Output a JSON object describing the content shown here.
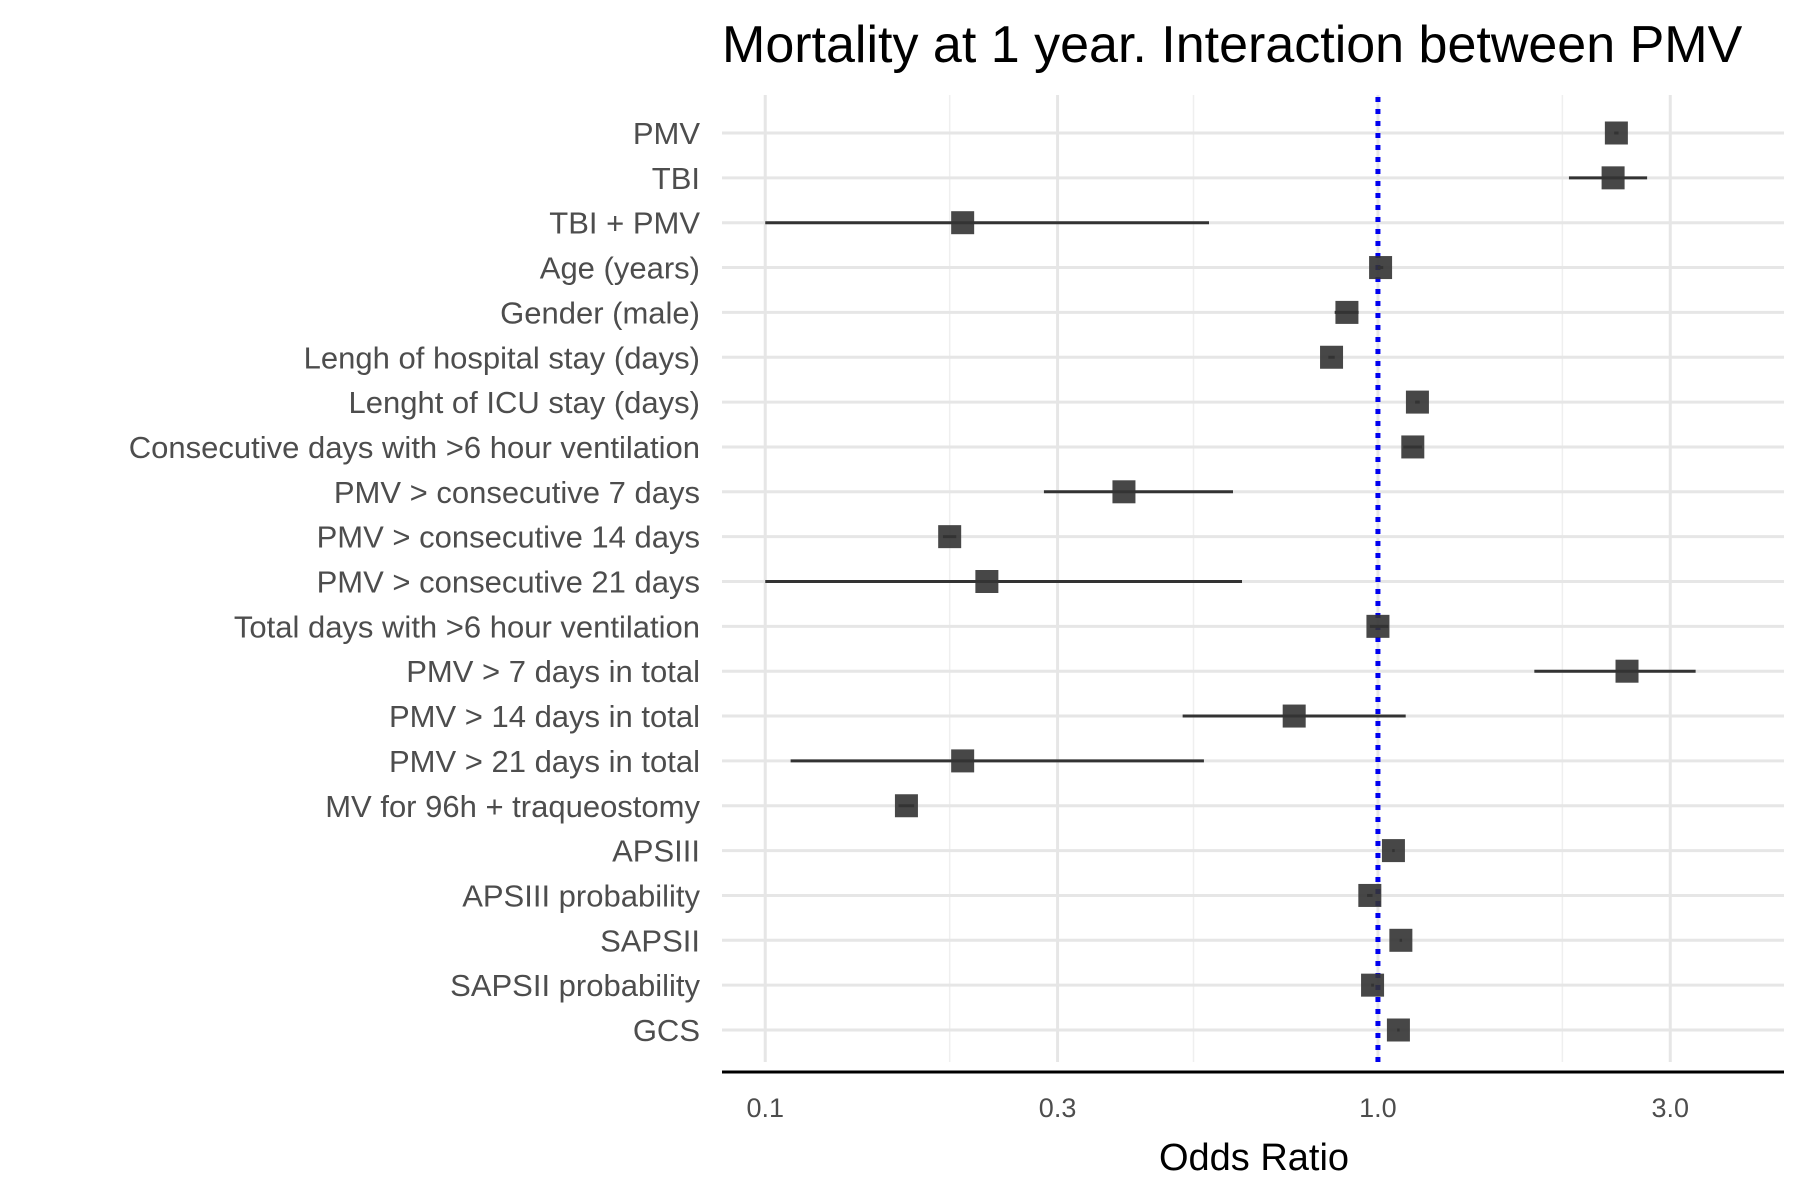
{
  "chart_data": {
    "type": "forest",
    "title": "Mortality at 1 year. Interaction between PMV",
    "xlabel": "Odds Ratio",
    "ylabel": "",
    "xscale": "log10",
    "xlim": [
      0.085,
      4.6
    ],
    "x_ticks": [
      0.1,
      0.3,
      1.0,
      3.0
    ],
    "x_tick_labels": [
      "0.1",
      "0.3",
      "1.0",
      "3.0"
    ],
    "x_minor_ticks": [
      0.2,
      0.5,
      2.0
    ],
    "reference_line": 1.0,
    "reference_line_color": "#0000ee",
    "marker_color": "#333333",
    "grid": true,
    "legend": "none",
    "series": [
      {
        "rows": [
          {
            "label": "PMV",
            "or": 2.45,
            "ci_low": 2.43,
            "ci_high": 2.47
          },
          {
            "label": "TBI",
            "or": 2.42,
            "ci_low": 2.05,
            "ci_high": 2.75
          },
          {
            "label": "TBI + PMV",
            "or": 0.21,
            "ci_low": 0.1,
            "ci_high": 0.53
          },
          {
            "label": "Age (years)",
            "or": 1.01,
            "ci_low": 1.0,
            "ci_high": 1.02
          },
          {
            "label": "Gender (male)",
            "or": 0.89,
            "ci_low": 0.85,
            "ci_high": 0.93
          },
          {
            "label": "Lengh of hospital stay (days)",
            "or": 0.84,
            "ci_low": 0.83,
            "ci_high": 0.85
          },
          {
            "label": "Lenght of ICU stay (days)",
            "or": 1.16,
            "ci_low": 1.15,
            "ci_high": 1.17
          },
          {
            "label": "Consecutive days with >6 hour ventilation",
            "or": 1.14,
            "ci_low": 1.1,
            "ci_high": 1.18
          },
          {
            "label": "PMV > consecutive 7 days",
            "or": 0.385,
            "ci_low": 0.285,
            "ci_high": 0.58
          },
          {
            "label": "PMV > consecutive 14 days",
            "or": 0.2,
            "ci_low": 0.195,
            "ci_high": 0.205
          },
          {
            "label": "PMV > consecutive 21 days",
            "or": 0.23,
            "ci_low": 0.1,
            "ci_high": 0.6
          },
          {
            "label": "Total days with >6 hour ventilation",
            "or": 1.0,
            "ci_low": 0.97,
            "ci_high": 1.04
          },
          {
            "label": "PMV > 7 days in total",
            "or": 2.55,
            "ci_low": 1.8,
            "ci_high": 3.3
          },
          {
            "label": "PMV > 14 days in total",
            "or": 0.73,
            "ci_low": 0.48,
            "ci_high": 1.11
          },
          {
            "label": "PMV > 21 days in total",
            "or": 0.21,
            "ci_low": 0.11,
            "ci_high": 0.52
          },
          {
            "label": "MV for 96h + traqueostomy",
            "or": 0.17,
            "ci_low": 0.165,
            "ci_high": 0.175
          },
          {
            "label": "APSIII",
            "or": 1.06,
            "ci_low": 1.055,
            "ci_high": 1.065
          },
          {
            "label": "APSIII probability",
            "or": 0.97,
            "ci_low": 0.96,
            "ci_high": 0.98
          },
          {
            "label": "SAPSII",
            "or": 1.09,
            "ci_low": 1.085,
            "ci_high": 1.095
          },
          {
            "label": "SAPSII probability",
            "or": 0.98,
            "ci_low": 0.975,
            "ci_high": 0.985
          },
          {
            "label": "GCS",
            "or": 1.08,
            "ci_low": 1.075,
            "ci_high": 1.085
          }
        ]
      }
    ]
  }
}
